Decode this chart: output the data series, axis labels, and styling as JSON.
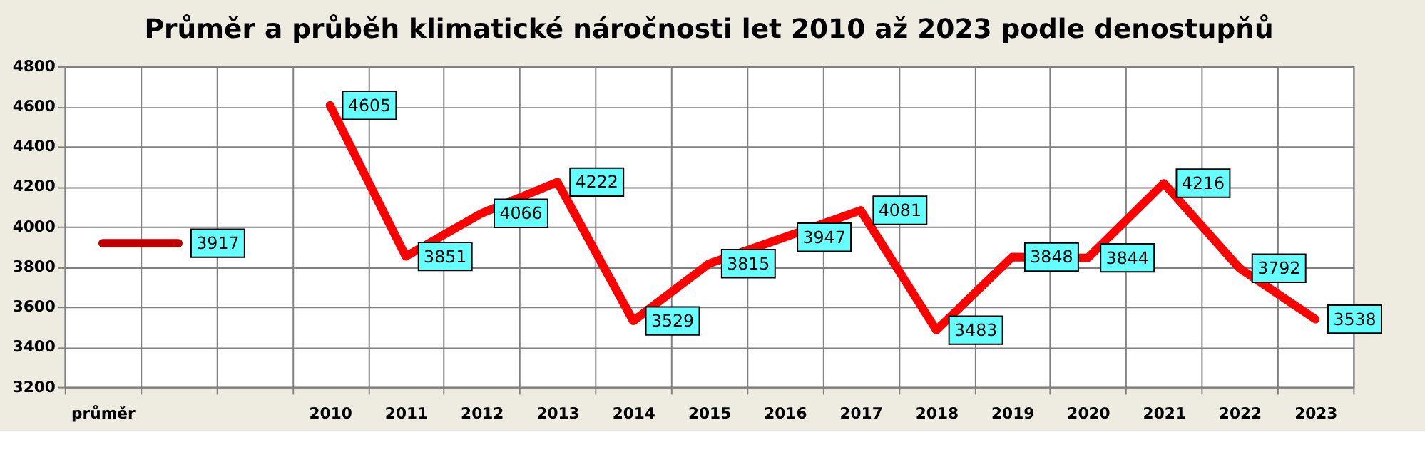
{
  "chart_data": {
    "type": "line",
    "title": "Průměr a průběh klimatické náročnosti let 2010 až 2023 podle denostupňů",
    "categories": [
      "průměr",
      null,
      null,
      "2010",
      "2011",
      "2012",
      "2013",
      "2014",
      "2015",
      "2016",
      "2017",
      "2018",
      "2019",
      "2020",
      "2021",
      "2022",
      "2023"
    ],
    "series": [
      {
        "color": "#c00000",
        "values": [
          3917,
          3917,
          null,
          null,
          null,
          null,
          null,
          null,
          null,
          null,
          null,
          null,
          null,
          null,
          null,
          null,
          null
        ],
        "value_labels": [
          null,
          "3917",
          null,
          null,
          null,
          null,
          null,
          null,
          null,
          null,
          null,
          null,
          null,
          null,
          null,
          null,
          null
        ]
      },
      {
        "color": "#ff0000",
        "values": [
          null,
          null,
          null,
          4605,
          3851,
          4066,
          4222,
          3529,
          3815,
          3947,
          4081,
          3483,
          3848,
          3844,
          4216,
          3792,
          3538
        ],
        "value_labels": [
          null,
          null,
          null,
          "4605",
          "3851",
          "4066",
          "4222",
          "3529",
          "3815",
          "3947",
          "4081",
          "3483",
          "3848",
          "3844",
          "4216",
          "3792",
          "3538"
        ]
      }
    ],
    "ylim": [
      3200,
      4800
    ],
    "yticks": [
      3200,
      3400,
      3600,
      3800,
      4000,
      4200,
      4400,
      4600,
      4800
    ],
    "grid": true,
    "legend": false,
    "marker": "none",
    "line_style": "solid"
  }
}
